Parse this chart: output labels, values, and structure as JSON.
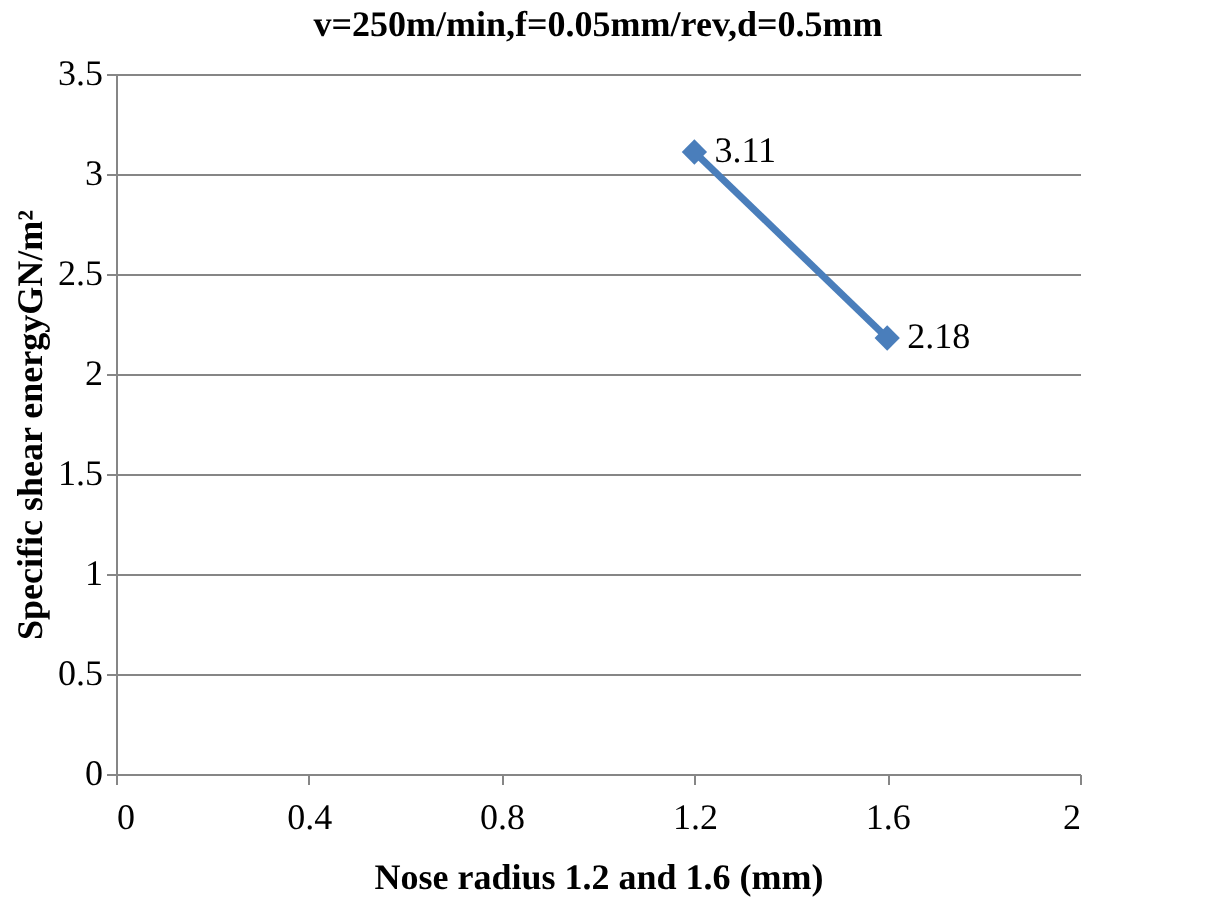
{
  "chart_data": {
    "type": "line",
    "title": "v=250m/min,f=0.05mm/rev,d=0.5mm",
    "xlabel": "Nose radius 1.2 and 1.6 (mm)",
    "ylabel": "Specific shear energyGN/m²",
    "x": [
      1.2,
      1.6
    ],
    "series": [
      {
        "color": "#4a7ebb",
        "values": [
          3.11,
          2.18
        ]
      }
    ],
    "data_labels": true,
    "marker": "diamond",
    "line_style": "solid",
    "grid": "y",
    "xlim": [
      0,
      2
    ],
    "xticks": [
      0,
      0.4,
      0.8,
      1.2,
      1.6,
      2
    ],
    "ylim": [
      0,
      3.5
    ],
    "yticks": [
      0,
      0.5,
      1,
      1.5,
      2,
      2.5,
      3,
      3.5
    ]
  }
}
